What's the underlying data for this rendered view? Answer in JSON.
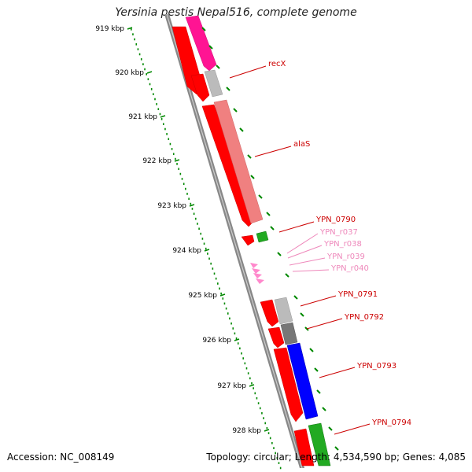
{
  "header": {
    "title": "Yersinia pestis Nepal516, complete genome"
  },
  "footer": {
    "accession": "Accession: NC_008149",
    "summary": "Topology: circular; Length: 4,534,590 bp; Genes: 4,085"
  },
  "ruler": {
    "ticks": [
      "919 kbp",
      "920 kbp",
      "921 kbp",
      "922 kbp",
      "923 kbp",
      "924 kbp",
      "925 kbp",
      "926 kbp",
      "927 kbp",
      "928 kbp"
    ]
  },
  "colors": {
    "cds_forward": "#ff0000",
    "cds_reverse": "#f08080",
    "rrna_pink": "#ff1493",
    "gray_gene": "#bbbbbb",
    "dark_gray_gene": "#777777",
    "blue_gene": "#0000ff",
    "green_gene": "#22aa22",
    "ruler_green": "#008800",
    "label_red": "#cc0000",
    "label_pink": "#ee88bb"
  },
  "genes": [
    {
      "label": "recX",
      "color": "label_red"
    },
    {
      "label": "alaS",
      "color": "label_red"
    },
    {
      "label": "YPN_0790",
      "color": "label_red"
    },
    {
      "label": "YPN_r037",
      "color": "label_pink"
    },
    {
      "label": "YPN_r038",
      "color": "label_pink"
    },
    {
      "label": "YPN_r039",
      "color": "label_pink"
    },
    {
      "label": "YPN_r040",
      "color": "label_pink"
    },
    {
      "label": "YPN_0791",
      "color": "label_red"
    },
    {
      "label": "YPN_0792",
      "color": "label_red"
    },
    {
      "label": "YPN_0793",
      "color": "label_red"
    },
    {
      "label": "YPN_0794",
      "color": "label_red"
    }
  ]
}
